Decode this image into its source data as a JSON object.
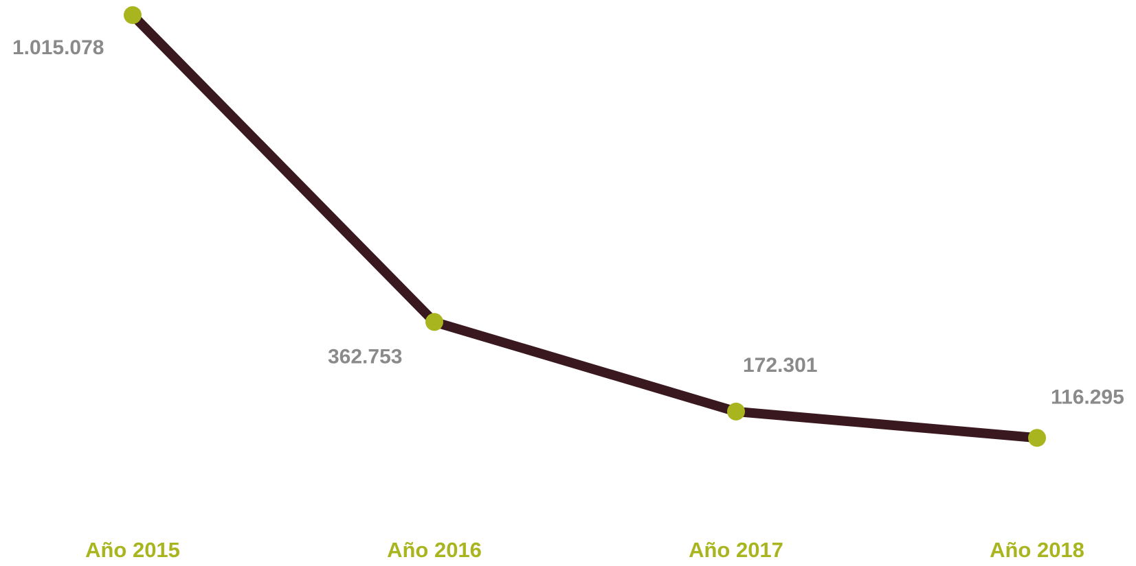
{
  "colors": {
    "line": "#3a1820",
    "marker": "#a8b51f",
    "value_label": "#8a8a8a",
    "category_label": "#a8b51f"
  },
  "chart_data": {
    "type": "line",
    "categories": [
      "Año 2015",
      "Año 2016",
      "Año 2017",
      "Año 2018"
    ],
    "series": [
      {
        "values": [
          1015078,
          362753,
          172301,
          116295
        ],
        "value_labels": [
          "1.015.078",
          "362.753",
          "172.301",
          "116.295"
        ]
      }
    ],
    "title": "",
    "xlabel": "",
    "ylabel": "",
    "ylim": [
      0,
      1015078
    ],
    "grid": false,
    "legend": "none"
  }
}
